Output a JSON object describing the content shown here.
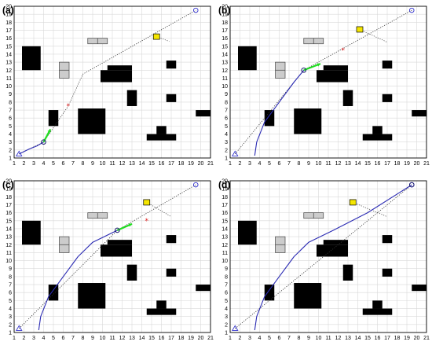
{
  "figure": {
    "colors": {
      "grid": "#d9d9d9",
      "frame": "#000000",
      "obstacle": "#000000",
      "dynamic_obstacle": "#cccccc",
      "moving_target": "#f5e600",
      "path": "#2b2bb3",
      "reference_line": "#333333",
      "start_goal": "#3333cc",
      "waypoint": "#e02020",
      "heading_arrow": "#22dd22"
    },
    "axis": {
      "x_ticks": [
        "1",
        "2",
        "3",
        "4",
        "5",
        "6",
        "7",
        "8",
        "9",
        "10",
        "11",
        "12",
        "13",
        "14",
        "15",
        "16",
        "17",
        "18",
        "19",
        "20",
        "21"
      ],
      "y_ticks": [
        "1",
        "2",
        "3",
        "4",
        "5",
        "6",
        "7",
        "8",
        "9",
        "10",
        "11",
        "12",
        "13",
        "14",
        "15",
        "16",
        "17",
        "18",
        "19",
        "20"
      ]
    },
    "environment": {
      "start": [
        1.5,
        1.5
      ],
      "goal": [
        19.5,
        19.5
      ],
      "static_obstacles": [
        {
          "x0": 1.8,
          "x1": 3.7,
          "y0": 12.0,
          "y1": 15.0
        },
        {
          "x0": 4.5,
          "x1": 5.5,
          "y0": 5.0,
          "y1": 7.0
        },
        {
          "x0": 7.5,
          "x1": 10.3,
          "y0": 4.0,
          "y1": 7.2
        },
        {
          "x0": 9.8,
          "x1": 13.0,
          "y0": 10.5,
          "y1": 12.0
        },
        {
          "x0": 10.5,
          "x1": 13.0,
          "y0": 12.0,
          "y1": 12.6
        },
        {
          "x0": 12.5,
          "x1": 13.5,
          "y0": 7.5,
          "y1": 9.5
        },
        {
          "x0": 16.5,
          "x1": 17.5,
          "y0": 12.2,
          "y1": 13.2
        },
        {
          "x0": 16.5,
          "x1": 17.5,
          "y0": 8.0,
          "y1": 9.0
        },
        {
          "x0": 15.5,
          "x1": 16.5,
          "y0": 4.0,
          "y1": 5.0
        },
        {
          "x0": 14.5,
          "x1": 17.5,
          "y0": 3.2,
          "y1": 4.0
        },
        {
          "x0": 19.5,
          "x1": 21.0,
          "y0": 6.2,
          "y1": 7.0
        }
      ],
      "dynamic_obstacles": [
        {
          "x0": 8.5,
          "x1": 10.5,
          "y0": 15.3,
          "y1": 16.0
        },
        {
          "x0": 5.6,
          "x1": 6.6,
          "y0": 11.0,
          "y1": 13.0
        }
      ]
    },
    "panels": [
      {
        "label": "(a)",
        "reference_line": [
          [
            1.5,
            1.5
          ],
          [
            4,
            3
          ],
          [
            6.5,
            7.5
          ],
          [
            8,
            11.5
          ],
          [
            19.5,
            19.5
          ]
        ],
        "path": [
          [
            1.5,
            1.5
          ],
          [
            2.5,
            2.1
          ],
          [
            3.3,
            2.5
          ],
          [
            4,
            3
          ]
        ],
        "robot": [
          4,
          3
        ],
        "heading_arrow": [
          [
            4,
            3
          ],
          [
            4.7,
            4.6
          ]
        ],
        "waypoint": [
          6.5,
          7.5
        ],
        "moving_target": [
          15.5,
          16.2
        ],
        "target_trail": [
          [
            15.5,
            16.2
          ],
          [
            16.8,
            15.6
          ]
        ]
      },
      {
        "label": "(b)",
        "reference_line": [
          [
            1.5,
            1.5
          ],
          [
            8.5,
            12
          ],
          [
            19.5,
            19.5
          ]
        ],
        "path": [
          [
            3.5,
            1.3
          ],
          [
            3.7,
            3
          ],
          [
            4.5,
            5.5
          ],
          [
            6,
            8
          ],
          [
            7.5,
            10.5
          ],
          [
            8.5,
            12
          ]
        ],
        "robot": [
          8.5,
          12
        ],
        "heading_arrow": [
          [
            8.5,
            12
          ],
          [
            10.2,
            12.8
          ]
        ],
        "waypoint": [
          12.5,
          14.5
        ],
        "moving_target": [
          14.2,
          17.1
        ],
        "target_trail": [
          [
            14.2,
            17.1
          ],
          [
            17,
            15.5
          ]
        ]
      },
      {
        "label": "(c)",
        "reference_line": [
          [
            1.5,
            1.5
          ],
          [
            11.5,
            13.8
          ],
          [
            19.5,
            19.5
          ]
        ],
        "path": [
          [
            3.5,
            1.3
          ],
          [
            3.7,
            3
          ],
          [
            4.5,
            5.5
          ],
          [
            6,
            8
          ],
          [
            7.5,
            10.5
          ],
          [
            9,
            12.3
          ],
          [
            11.5,
            13.8
          ]
        ],
        "robot": [
          11.5,
          13.8
        ],
        "heading_arrow": [
          [
            11.5,
            13.8
          ],
          [
            13,
            14.6
          ]
        ],
        "waypoint": [
          14.5,
          15
        ],
        "moving_target": [
          14.5,
          17.3
        ],
        "target_trail": [
          [
            14.5,
            17.3
          ],
          [
            17,
            15.5
          ]
        ]
      },
      {
        "label": "(d)",
        "reference_line": [
          [
            1.5,
            1.5
          ],
          [
            19.5,
            19.5
          ]
        ],
        "path": [
          [
            3.5,
            1.3
          ],
          [
            3.7,
            3
          ],
          [
            4.5,
            5.5
          ],
          [
            6,
            8
          ],
          [
            7.5,
            10.5
          ],
          [
            9,
            12.3
          ],
          [
            11.5,
            13.8
          ],
          [
            15,
            16
          ],
          [
            19.5,
            19.5
          ]
        ],
        "robot": [
          19.5,
          19.5
        ],
        "heading_arrow": null,
        "waypoint": null,
        "moving_target": [
          13.5,
          17.3
        ],
        "target_trail": [
          [
            13.5,
            17.3
          ],
          [
            17,
            15.5
          ]
        ]
      }
    ]
  }
}
